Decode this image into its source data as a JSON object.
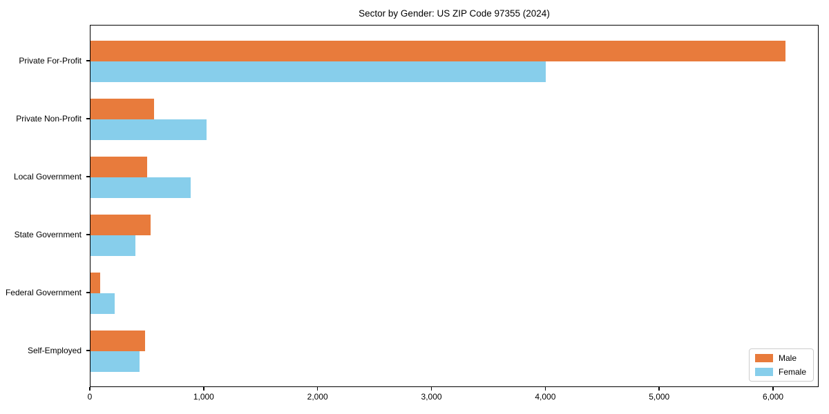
{
  "chart_data": {
    "type": "bar",
    "orientation": "horizontal",
    "title": "Sector by Gender: US ZIP Code 97355 (2024)",
    "xlabel": "",
    "ylabel": "",
    "categories": [
      "Private For-Profit",
      "Private Non-Profit",
      "Local Government",
      "State Government",
      "Federal Government",
      "Self-Employed"
    ],
    "series": [
      {
        "name": "Male",
        "color": "#E87B3C",
        "values": [
          6100,
          560,
          500,
          530,
          85,
          480
        ]
      },
      {
        "name": "Female",
        "color": "#87CEEB",
        "values": [
          4000,
          1020,
          880,
          395,
          210,
          430
        ]
      }
    ],
    "xlim": [
      0,
      6400
    ],
    "xticks": [
      0,
      1000,
      2000,
      3000,
      4000,
      5000,
      6000
    ],
    "xtick_labels": [
      "0",
      "1,000",
      "2,000",
      "3,000",
      "4,000",
      "5,000",
      "6,000"
    ],
    "grid": false,
    "legend_position": "lower right",
    "legend_entries": [
      "Male",
      "Female"
    ]
  }
}
